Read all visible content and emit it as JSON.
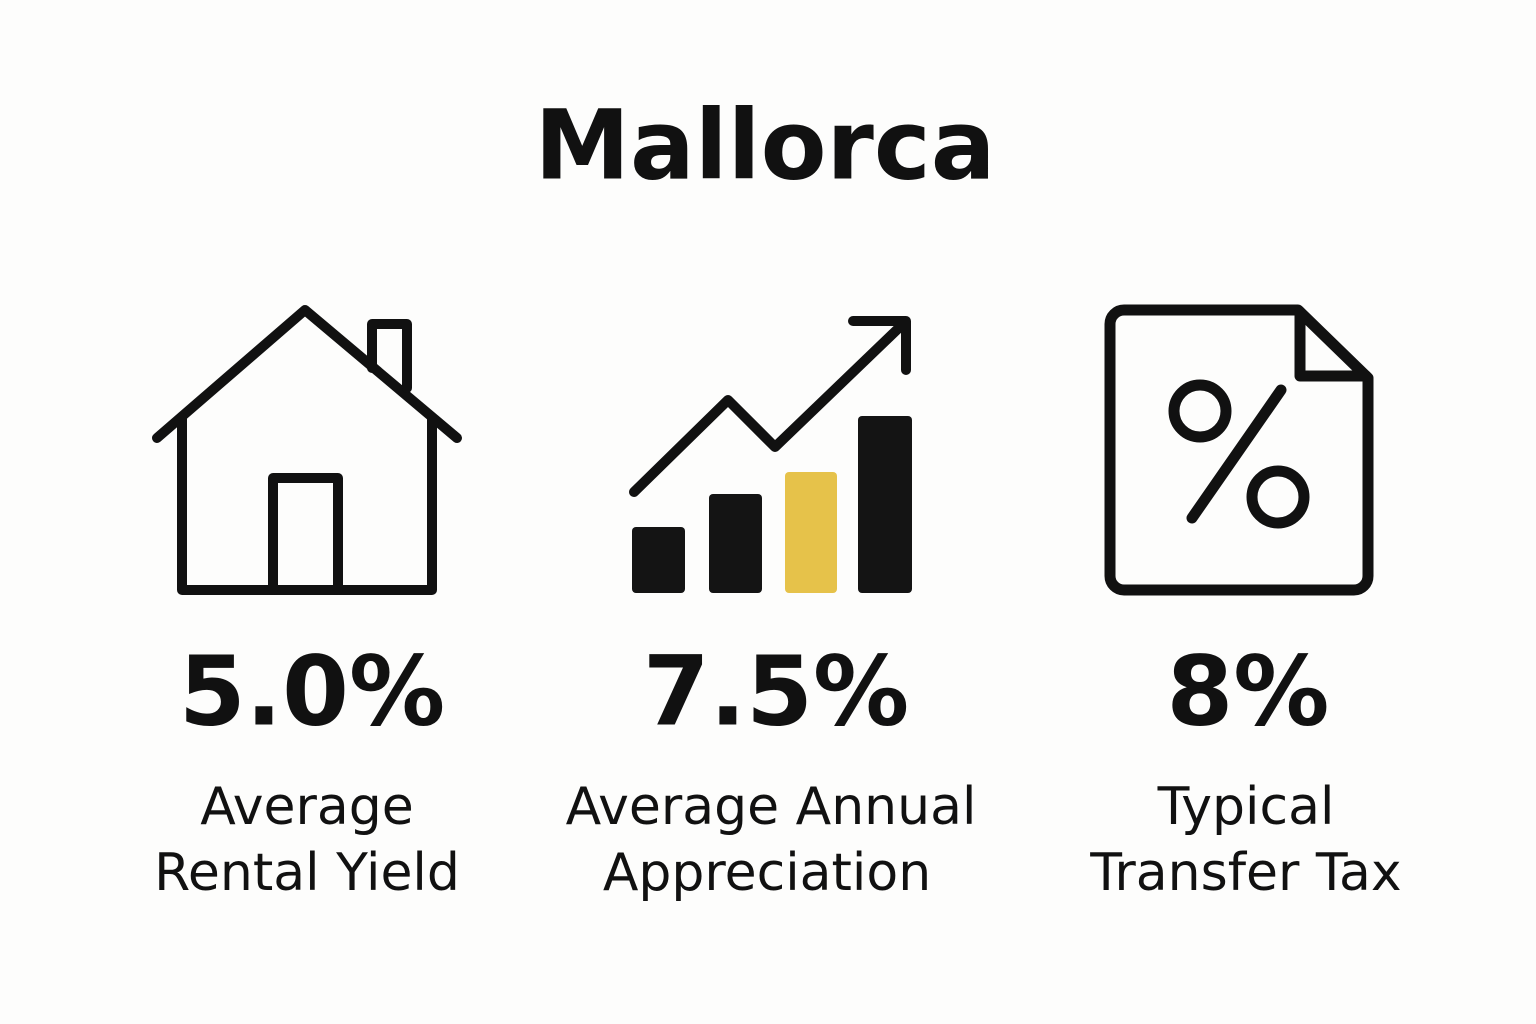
{
  "header": {
    "title": "Mallorca"
  },
  "stats": [
    {
      "value": "5.0%",
      "label_lines": [
        "Average",
        "Rental Yield"
      ]
    },
    {
      "value": "7.5%",
      "label_lines": [
        "Average Annual",
        "Appreciation"
      ]
    },
    {
      "value": "8%",
      "label_lines": [
        "Typical",
        "Transfer Tax"
      ]
    }
  ]
}
